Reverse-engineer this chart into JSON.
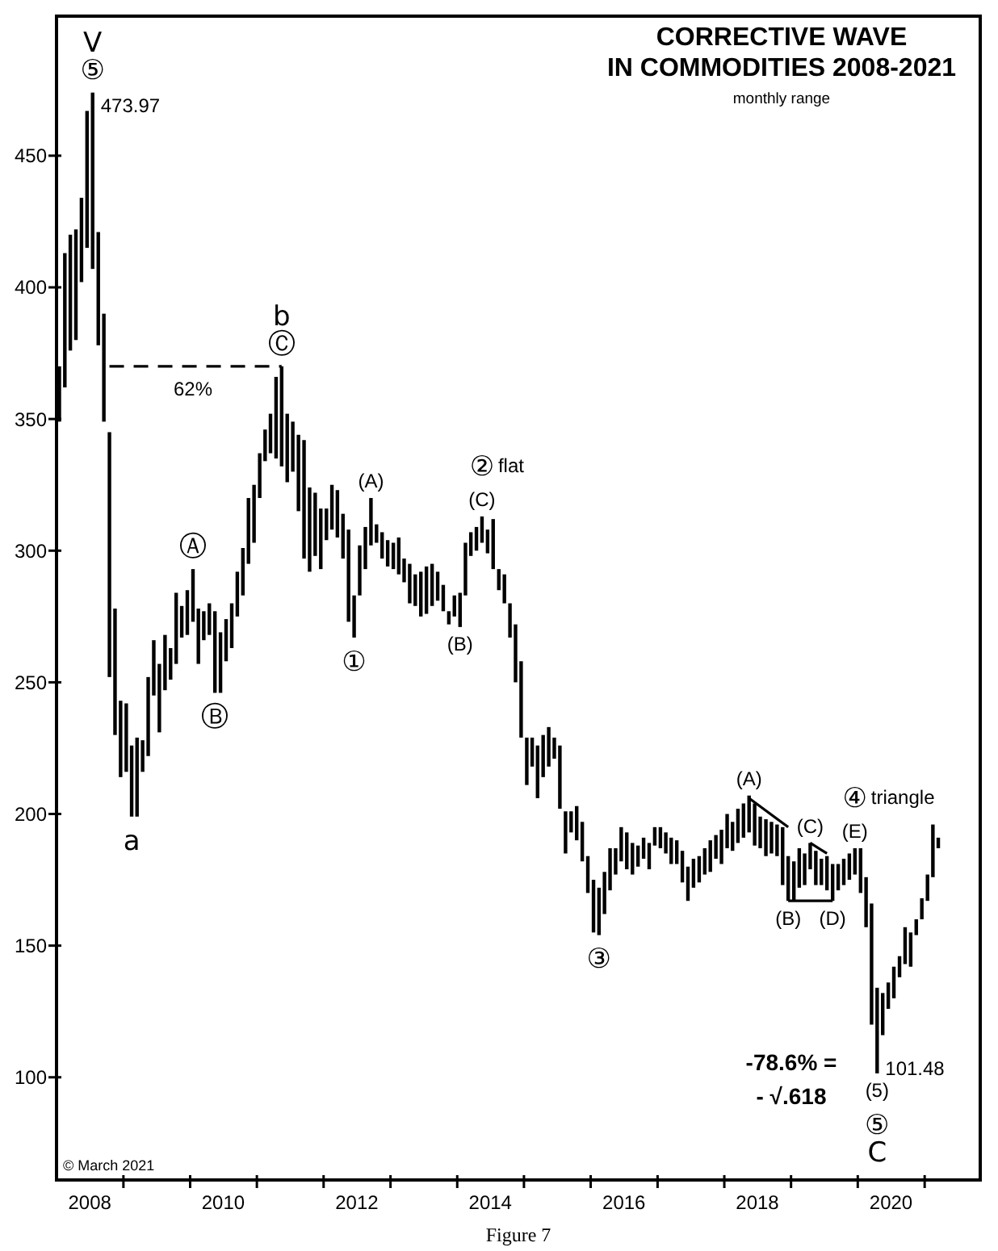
{
  "chart_data": {
    "type": "bar",
    "title": "CORRECTIVE WAVE IN COMMODITIES 2008-2021",
    "subtitle": "monthly range",
    "x": [
      "2008-01",
      "2008-02",
      "2008-03",
      "2008-04",
      "2008-05",
      "2008-06",
      "2008-07",
      "2008-08",
      "2008-09",
      "2008-10",
      "2008-11",
      "2008-12",
      "2009-01",
      "2009-02",
      "2009-03",
      "2009-04",
      "2009-05",
      "2009-06",
      "2009-07",
      "2009-08",
      "2009-09",
      "2009-10",
      "2009-11",
      "2009-12",
      "2010-01",
      "2010-02",
      "2010-03",
      "2010-04",
      "2010-05",
      "2010-06",
      "2010-07",
      "2010-08",
      "2010-09",
      "2010-10",
      "2010-11",
      "2010-12",
      "2011-01",
      "2011-02",
      "2011-03",
      "2011-04",
      "2011-05",
      "2011-06",
      "2011-07",
      "2011-08",
      "2011-09",
      "2011-10",
      "2011-11",
      "2011-12",
      "2012-01",
      "2012-02",
      "2012-03",
      "2012-04",
      "2012-05",
      "2012-06",
      "2012-07",
      "2012-08",
      "2012-09",
      "2012-10",
      "2012-11",
      "2012-12",
      "2013-01",
      "2013-02",
      "2013-03",
      "2013-04",
      "2013-05",
      "2013-06",
      "2013-07",
      "2013-08",
      "2013-09",
      "2013-10",
      "2013-11",
      "2013-12",
      "2014-01",
      "2014-02",
      "2014-03",
      "2014-04",
      "2014-05",
      "2014-06",
      "2014-07",
      "2014-08",
      "2014-09",
      "2014-10",
      "2014-11",
      "2014-12",
      "2015-01",
      "2015-02",
      "2015-03",
      "2015-04",
      "2015-05",
      "2015-06",
      "2015-07",
      "2015-08",
      "2015-09",
      "2015-10",
      "2015-11",
      "2015-12",
      "2016-01",
      "2016-02",
      "2016-03",
      "2016-04",
      "2016-05",
      "2016-06",
      "2016-07",
      "2016-08",
      "2016-09",
      "2016-10",
      "2016-11",
      "2016-12",
      "2017-01",
      "2017-02",
      "2017-03",
      "2017-04",
      "2017-05",
      "2017-06",
      "2017-07",
      "2017-08",
      "2017-09",
      "2017-10",
      "2017-11",
      "2017-12",
      "2018-01",
      "2018-02",
      "2018-03",
      "2018-04",
      "2018-05",
      "2018-06",
      "2018-07",
      "2018-08",
      "2018-09",
      "2018-10",
      "2018-11",
      "2018-12",
      "2019-01",
      "2019-02",
      "2019-03",
      "2019-04",
      "2019-05",
      "2019-06",
      "2019-07",
      "2019-08",
      "2019-09",
      "2019-10",
      "2019-11",
      "2019-12",
      "2020-01",
      "2020-02",
      "2020-03",
      "2020-04",
      "2020-05",
      "2020-06",
      "2020-07",
      "2020-08",
      "2020-09",
      "2020-10",
      "2020-11",
      "2020-12",
      "2021-01",
      "2021-02",
      "2021-03"
    ],
    "series": [
      {
        "color": "#000000",
        "base": [
          349,
          362,
          376,
          380,
          402,
          415,
          407,
          378,
          349,
          252,
          230,
          214,
          216,
          199,
          199,
          216,
          222,
          245,
          231,
          247,
          251,
          257,
          267,
          268,
          273,
          257,
          266,
          268,
          246,
          246,
          258,
          263,
          275,
          283,
          295,
          303,
          320,
          334,
          337,
          335,
          332,
          326,
          330,
          315,
          297,
          292,
          298,
          293,
          304,
          308,
          305,
          297,
          273,
          267,
          283,
          293,
          302,
          303,
          297,
          294,
          293,
          291,
          288,
          280,
          279,
          275,
          276,
          279,
          281,
          277,
          272,
          275,
          271,
          283,
          298,
          300,
          303,
          299,
          293,
          285,
          280,
          267,
          250,
          229,
          211,
          218,
          206,
          214,
          218,
          221,
          202,
          185,
          193,
          190,
          182,
          170,
          155,
          154,
          162,
          171,
          177,
          182,
          179,
          177,
          180,
          183,
          179,
          188,
          187,
          185,
          181,
          181,
          174,
          167,
          172,
          174,
          177,
          178,
          183,
          181,
          187,
          186,
          189,
          191,
          193,
          188,
          187,
          184,
          185,
          184,
          173,
          167,
          167,
          172,
          173,
          179,
          173,
          173,
          171,
          167,
          171,
          173,
          175,
          177,
          170,
          157,
          120,
          101.48,
          116,
          126,
          130,
          138,
          143,
          142,
          154,
          160,
          167,
          176,
          187
        ],
        "values": [
          21,
          51,
          44,
          42,
          32,
          52,
          66.97,
          43,
          41,
          93,
          48,
          29,
          26,
          27,
          30,
          12,
          30,
          21,
          26,
          21,
          12,
          27,
          12,
          17,
          20,
          21,
          11,
          12,
          31,
          23,
          16,
          17,
          17,
          18,
          25,
          22,
          17,
          12,
          15,
          31,
          38,
          26,
          19,
          29,
          45,
          32,
          24,
          23,
          12,
          17,
          18,
          17,
          35,
          16,
          19,
          16,
          18,
          7,
          10,
          10,
          10,
          14,
          9,
          15,
          12,
          17,
          18,
          16,
          11,
          10,
          5,
          8,
          13,
          20,
          9,
          9,
          10,
          9,
          19,
          8,
          11,
          13,
          22,
          29,
          18,
          11,
          20,
          16,
          15,
          8,
          24,
          16,
          8,
          13,
          15,
          14,
          20,
          18,
          16,
          16,
          10,
          13,
          14,
          12,
          8,
          8,
          10,
          7,
          8,
          8,
          10,
          9,
          12,
          13,
          11,
          10,
          10,
          12,
          9,
          13,
          13,
          11,
          13,
          13,
          14,
          16,
          12,
          14,
          12,
          12,
          22,
          17,
          15,
          15,
          12,
          10,
          13,
          10,
          13,
          14,
          10,
          10,
          10,
          10,
          17,
          19,
          46,
          32.52,
          16,
          10,
          12,
          8,
          14,
          13,
          6,
          8,
          10,
          20,
          4
        ]
      },
      {
        "type": "line",
        "color": "#000000",
        "line_style": "dashed",
        "x": [
          "2008-10",
          "2011-05"
        ],
        "values": [
          370,
          370
        ]
      },
      {
        "type": "line",
        "color": "#000000",
        "line_style": "solid",
        "x": [
          "2018-05",
          "2018-12"
        ],
        "values": [
          206,
          195
        ]
      },
      {
        "type": "line",
        "color": "#000000",
        "line_style": "solid",
        "x": [
          "2019-04",
          "2019-07"
        ],
        "values": [
          189,
          185
        ]
      },
      {
        "type": "line",
        "color": "#000000",
        "line_style": "solid",
        "x": [
          "2018-12",
          "2019-08"
        ],
        "values": [
          167,
          167
        ]
      }
    ],
    "xlim": [
      "2008-01",
      "2021-11"
    ],
    "xticks": [
      {
        "value": "2008-07",
        "label": "2008"
      },
      {
        "value": "2010-07",
        "label": "2010"
      },
      {
        "value": "2012-07",
        "label": "2012"
      },
      {
        "value": "2014-07",
        "label": "2014"
      },
      {
        "value": "2016-07",
        "label": "2016"
      },
      {
        "value": "2018-07",
        "label": "2018"
      },
      {
        "value": "2020-07",
        "label": "2020"
      },
      {
        "value": "2009-01",
        "label": null
      },
      {
        "value": "2010-01",
        "label": null
      },
      {
        "value": "2011-01",
        "label": null
      },
      {
        "value": "2012-01",
        "label": null
      },
      {
        "value": "2013-01",
        "label": null
      },
      {
        "value": "2014-01",
        "label": null
      },
      {
        "value": "2015-01",
        "label": null
      },
      {
        "value": "2016-01",
        "label": null
      },
      {
        "value": "2017-01",
        "label": null
      },
      {
        "value": "2018-01",
        "label": null
      },
      {
        "value": "2019-01",
        "label": null
      },
      {
        "value": "2020-01",
        "label": null
      },
      {
        "value": "2021-01",
        "label": null
      }
    ],
    "ylim": [
      61,
      503
    ],
    "yticks": [
      100,
      150,
      200,
      250,
      300,
      350,
      400,
      450
    ],
    "annotations": [
      {
        "text": "473.97",
        "x": "2008-07",
        "y": 473.97
      },
      {
        "text": "⑤",
        "x": "2008-07",
        "y": 473.97
      },
      {
        "text": "V",
        "x": "2008-07",
        "y": 473.97
      },
      {
        "text": "Ⓒ",
        "x": "2011-05",
        "y": 370
      },
      {
        "text": "b",
        "x": "2011-05",
        "y": 370
      },
      {
        "text": "62%",
        "x": "2010-01",
        "y": 370
      },
      {
        "text": "Ⓐ",
        "x": "2010-01",
        "y": 293
      },
      {
        "text": "Ⓑ",
        "x": "2010-05",
        "y": 246
      },
      {
        "text": "a",
        "x": "2009-02",
        "y": 199
      },
      {
        "text": "(A)",
        "x": "2012-09",
        "y": 320
      },
      {
        "text": "①",
        "x": "2012-06",
        "y": 267
      },
      {
        "text": "(C)",
        "x": "2014-05",
        "y": 313
      },
      {
        "text": "②",
        "x": "2014-05",
        "y": 313
      },
      {
        "text": "flat",
        "x": "2014-05",
        "y": 313
      },
      {
        "text": "(B)",
        "x": "2014-01",
        "y": 271
      },
      {
        "text": "③",
        "x": "2016-02",
        "y": 154
      },
      {
        "text": "(A)",
        "x": "2018-05",
        "y": 207
      },
      {
        "text": "(C)",
        "x": "2019-04",
        "y": 189
      },
      {
        "text": "(B)",
        "x": "2018-12",
        "y": 167
      },
      {
        "text": "(D)",
        "x": "2019-08",
        "y": 167
      },
      {
        "text": "(E)",
        "x": "2019-12",
        "y": 187
      },
      {
        "text": "④",
        "x": "2019-12",
        "y": 187
      },
      {
        "text": "triangle",
        "x": "2019-12",
        "y": 187
      },
      {
        "text": "101.48",
        "x": "2020-04",
        "y": 101.48
      },
      {
        "text": "(5)",
        "x": "2020-04",
        "y": 101.48
      },
      {
        "text": "⑤",
        "x": "2020-04",
        "y": 101.48
      },
      {
        "text": "C",
        "x": "2020-04",
        "y": 101.48
      },
      "-78.6% =",
      "- √.618",
      "© March 2021",
      "Figure 7"
    ]
  }
}
